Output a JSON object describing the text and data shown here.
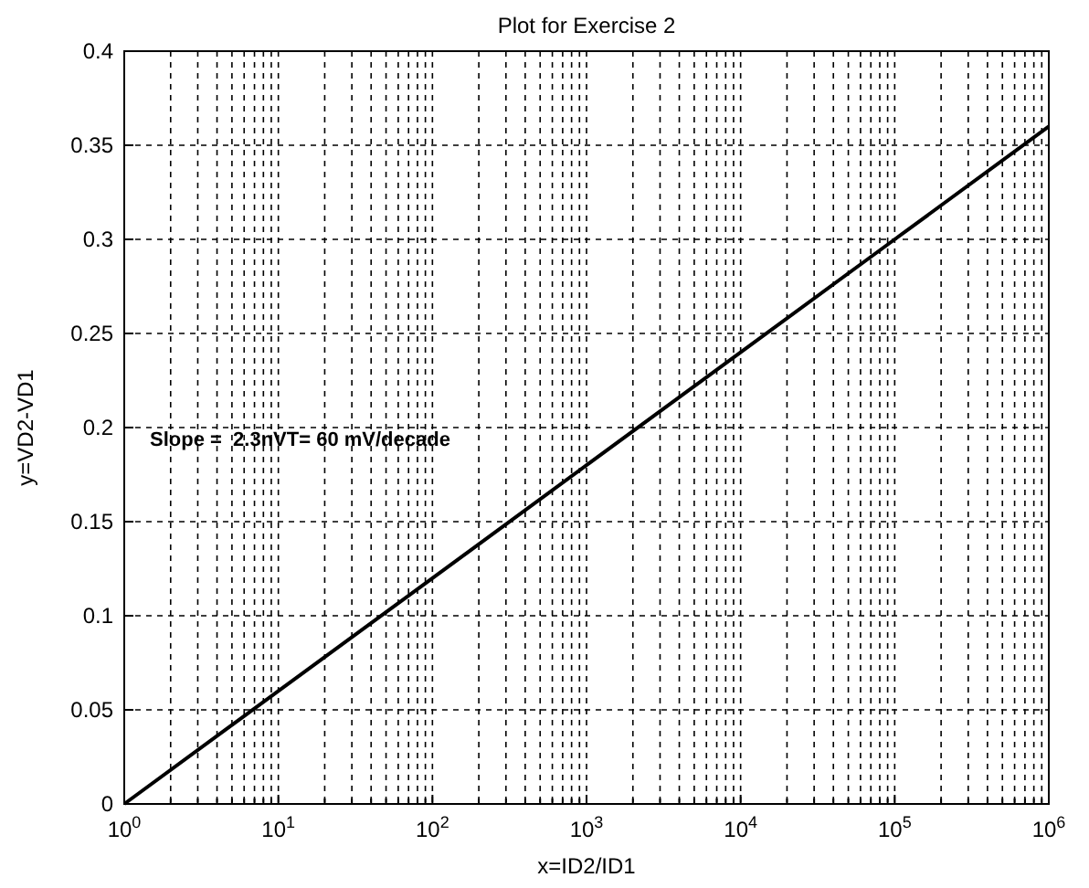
{
  "chart_data": {
    "type": "line",
    "title": "Plot for Exercise 2",
    "xlabel": "x=ID2/ID1",
    "ylabel": "y=VD2-VD1",
    "x": [
      1,
      10,
      100,
      1000,
      10000,
      100000,
      1000000
    ],
    "series": [
      {
        "color": "#000000",
        "values": [
          0,
          0.06,
          0.12,
          0.18,
          0.24,
          0.3,
          0.36
        ]
      }
    ],
    "log": "x",
    "xlim": [
      1,
      1000000
    ],
    "ylim": [
      0,
      0.4
    ],
    "xticks": [
      {
        "value": 1,
        "label": "10$^{0}$"
      },
      {
        "value": 2,
        "label": null
      },
      {
        "value": 3,
        "label": null
      },
      {
        "value": 4,
        "label": null
      },
      {
        "value": 5,
        "label": null
      },
      {
        "value": 6,
        "label": null
      },
      {
        "value": 7,
        "label": null
      },
      {
        "value": 8,
        "label": null
      },
      {
        "value": 9,
        "label": null
      },
      {
        "value": 10,
        "label": "10$^{1}$"
      },
      {
        "value": 20,
        "label": null
      },
      {
        "value": 30,
        "label": null
      },
      {
        "value": 40,
        "label": null
      },
      {
        "value": 50,
        "label": null
      },
      {
        "value": 60,
        "label": null
      },
      {
        "value": 70,
        "label": null
      },
      {
        "value": 80,
        "label": null
      },
      {
        "value": 90,
        "label": null
      },
      {
        "value": 100,
        "label": "10$^{2}$"
      },
      {
        "value": 200,
        "label": null
      },
      {
        "value": 300,
        "label": null
      },
      {
        "value": 400,
        "label": null
      },
      {
        "value": 500,
        "label": null
      },
      {
        "value": 600,
        "label": null
      },
      {
        "value": 700,
        "label": null
      },
      {
        "value": 800,
        "label": null
      },
      {
        "value": 900,
        "label": null
      },
      {
        "value": 1000,
        "label": "10$^{3}$"
      },
      {
        "value": 2000,
        "label": null
      },
      {
        "value": 3000,
        "label": null
      },
      {
        "value": 4000,
        "label": null
      },
      {
        "value": 5000,
        "label": null
      },
      {
        "value": 6000,
        "label": null
      },
      {
        "value": 7000,
        "label": null
      },
      {
        "value": 8000,
        "label": null
      },
      {
        "value": 9000,
        "label": null
      },
      {
        "value": 10000,
        "label": "10$^{4}$"
      },
      {
        "value": 20000,
        "label": null
      },
      {
        "value": 30000,
        "label": null
      },
      {
        "value": 40000,
        "label": null
      },
      {
        "value": 50000,
        "label": null
      },
      {
        "value": 60000,
        "label": null
      },
      {
        "value": 70000,
        "label": null
      },
      {
        "value": 80000,
        "label": null
      },
      {
        "value": 90000,
        "label": null
      },
      {
        "value": 100000,
        "label": "10$^{5}$"
      },
      {
        "value": 200000,
        "label": null
      },
      {
        "value": 300000,
        "label": null
      },
      {
        "value": 400000,
        "label": null
      },
      {
        "value": 500000,
        "label": null
      },
      {
        "value": 600000,
        "label": null
      },
      {
        "value": 700000,
        "label": null
      },
      {
        "value": 800000,
        "label": null
      },
      {
        "value": 900000,
        "label": null
      },
      {
        "value": 1000000,
        "label": "10$^{6}$"
      }
    ],
    "yticks": [
      0,
      0.05,
      0.1,
      0.15,
      0.2,
      0.25,
      0.3,
      0.35,
      0.4
    ],
    "grid": true,
    "marker": "none",
    "line_style": "solid",
    "annotations": [
      "Slope =  2.3nVT= 60 mV/decade"
    ]
  }
}
